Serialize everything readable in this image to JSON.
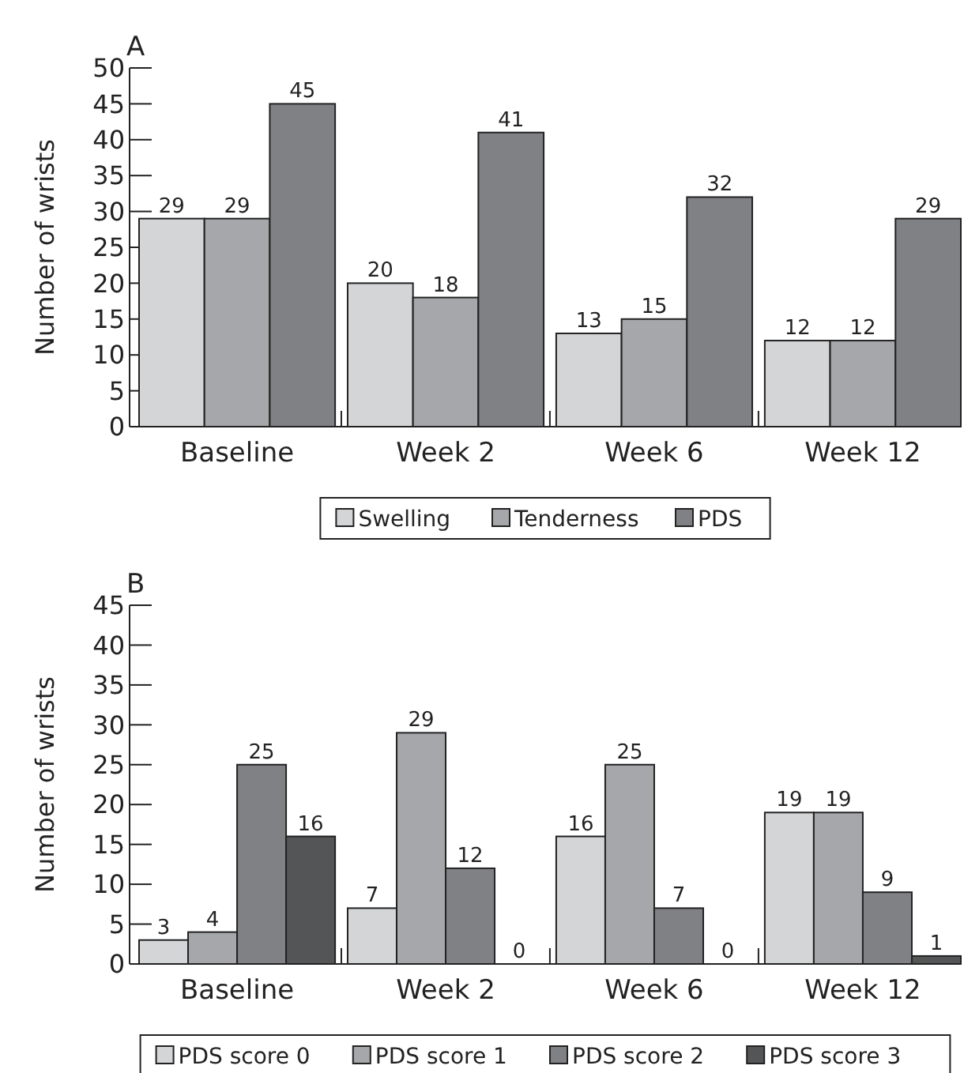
{
  "chart_data": [
    {
      "type": "bar",
      "title": "A",
      "ylabel": "Number of wrists",
      "categories": [
        "Baseline",
        "Week 2",
        "Week 6",
        "Week 12"
      ],
      "ylim": [
        0,
        50
      ],
      "yticks": [
        0,
        5,
        10,
        15,
        20,
        25,
        30,
        35,
        40,
        45,
        50
      ],
      "data_labels": true,
      "legend": "bottom",
      "series": [
        {
          "name": "Swelling",
          "color": "#d4d5d7",
          "values": [
            29,
            20,
            13,
            12
          ]
        },
        {
          "name": "Tenderness",
          "color": "#a6a7aa",
          "values": [
            29,
            18,
            15,
            12
          ]
        },
        {
          "name": "PDS",
          "color": "#808185",
          "values": [
            45,
            41,
            32,
            29
          ]
        }
      ]
    },
    {
      "type": "bar",
      "title": "B",
      "ylabel": "Number of wrists",
      "categories": [
        "Baseline",
        "Week 2",
        "Week 6",
        "Week 12"
      ],
      "ylim": [
        0,
        45
      ],
      "yticks": [
        0,
        5,
        10,
        15,
        20,
        25,
        30,
        35,
        40,
        45
      ],
      "data_labels": true,
      "legend": "bottom",
      "series": [
        {
          "name": "PDS score 0",
          "color": "#d4d5d7",
          "values": [
            3,
            7,
            16,
            19
          ]
        },
        {
          "name": "PDS score 1",
          "color": "#a6a7aa",
          "values": [
            4,
            29,
            25,
            19
          ]
        },
        {
          "name": "PDS score 2",
          "color": "#808185",
          "values": [
            25,
            12,
            7,
            9
          ]
        },
        {
          "name": "PDS score 3",
          "color": "#545557",
          "values": [
            16,
            0,
            0,
            1
          ]
        }
      ]
    }
  ]
}
